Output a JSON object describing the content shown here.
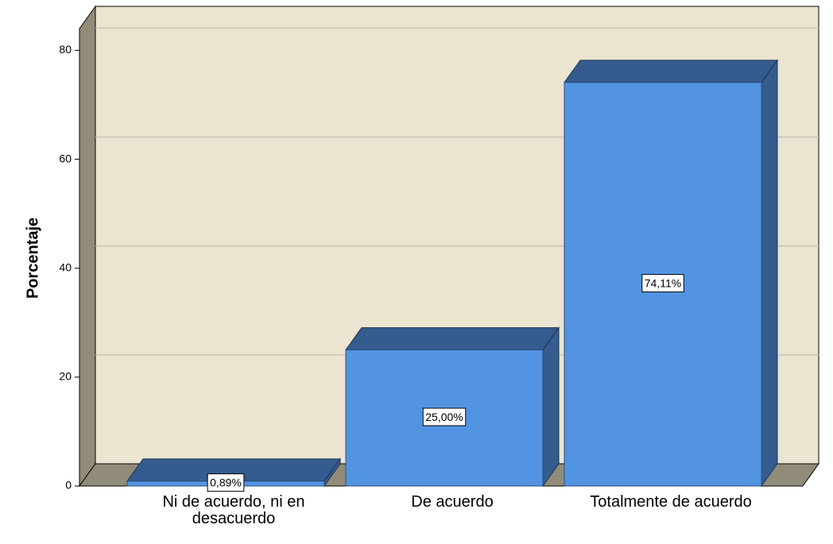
{
  "chart_data": {
    "type": "bar",
    "categories": [
      "Ni de acuerdo, ni en desacuerdo",
      "De acuerdo",
      "Totalmente de acuerdo"
    ],
    "values": [
      0.89,
      25.0,
      74.11
    ],
    "value_labels": [
      "0,89%",
      "25,00%",
      "74,11%"
    ],
    "ylabel": "Porcentaje",
    "color": "#5294e2",
    "side_color": "#345c8e",
    "ylim": [
      0,
      84
    ],
    "yticks": [
      0,
      20,
      40,
      60,
      80
    ],
    "grid": true
  }
}
